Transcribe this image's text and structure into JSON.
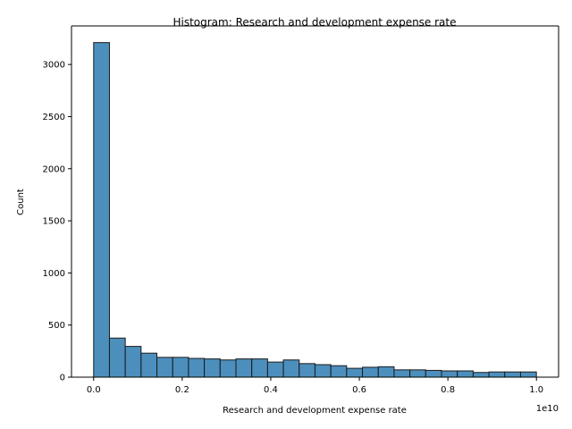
{
  "chart_data": {
    "type": "bar",
    "title": "Histogram:  Research and development expense rate",
    "xlabel": "Research and development expense rate",
    "ylabel": "Count",
    "x_offset_label": "1e10",
    "x_scale_factor": 10000000000,
    "bin_start": 0.0,
    "bin_width": 0.03571,
    "xlim": [
      -0.05,
      1.05
    ],
    "ylim": [
      0,
      3370
    ],
    "xticks": [
      0.0,
      0.2,
      0.4,
      0.6,
      0.8,
      1.0
    ],
    "xtick_labels": [
      "0.0",
      "0.2",
      "0.4",
      "0.6",
      "0.8",
      "1.0"
    ],
    "yticks": [
      0,
      500,
      1000,
      1500,
      2000,
      2500,
      3000
    ],
    "ytick_labels": [
      "0",
      "500",
      "1000",
      "1500",
      "2000",
      "2500",
      "3000"
    ],
    "values": [
      3210,
      375,
      295,
      230,
      190,
      190,
      180,
      175,
      165,
      175,
      175,
      145,
      165,
      130,
      120,
      110,
      85,
      95,
      100,
      70,
      70,
      65,
      60,
      60,
      45,
      50,
      50,
      50
    ],
    "bar_color": "#4c8fbd",
    "edge_color": "#1a1a1a",
    "grid": false
  }
}
